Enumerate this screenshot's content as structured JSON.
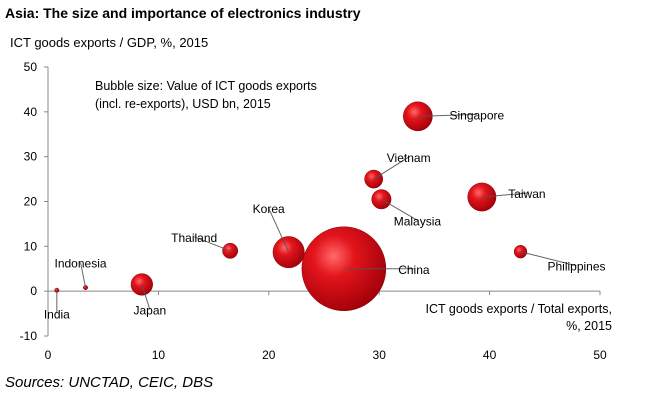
{
  "chart_data": {
    "type": "bubble",
    "title": "Asia: The size and importance of electronics industry",
    "ylabel": "ICT goods exports / GDP, %, 2015",
    "xlabel_line1": "ICT goods exports / Total exports,",
    "xlabel_line2": "%, 2015",
    "size_note_line1": "Bubble size: Value of ICT goods exports",
    "size_note_line2": "(incl. re-exports), USD bn, 2015",
    "xlim": [
      0,
      50
    ],
    "ylim": [
      -10,
      50
    ],
    "xticks": [
      "0",
      "10",
      "20",
      "30",
      "40",
      "50"
    ],
    "yticks": [
      "-10",
      "0",
      "10",
      "20",
      "30",
      "40",
      "50"
    ],
    "bubble_color": "#d8101a",
    "points": [
      {
        "name": "India",
        "x": 0.8,
        "y": 0.2,
        "size": 1.5
      },
      {
        "name": "Indonesia",
        "x": 3.4,
        "y": 0.8,
        "size": 3
      },
      {
        "name": "Japan",
        "x": 8.5,
        "y": 1.5,
        "size": 100
      },
      {
        "name": "Thailand",
        "x": 16.5,
        "y": 9,
        "size": 50
      },
      {
        "name": "Korea",
        "x": 21.8,
        "y": 8.7,
        "size": 210
      },
      {
        "name": "China",
        "x": 26.8,
        "y": 5,
        "size": 1500
      },
      {
        "name": "Vietnam",
        "x": 29.5,
        "y": 25,
        "size": 70
      },
      {
        "name": "Malaysia",
        "x": 30.2,
        "y": 20.5,
        "size": 80
      },
      {
        "name": "Singapore",
        "x": 33.5,
        "y": 39,
        "size": 180
      },
      {
        "name": "Taiwan",
        "x": 39.3,
        "y": 21,
        "size": 170
      },
      {
        "name": "Philippines",
        "x": 42.8,
        "y": 8.8,
        "size": 35
      }
    ]
  },
  "source": "Sources: UNCTAD, CEIC, DBS"
}
